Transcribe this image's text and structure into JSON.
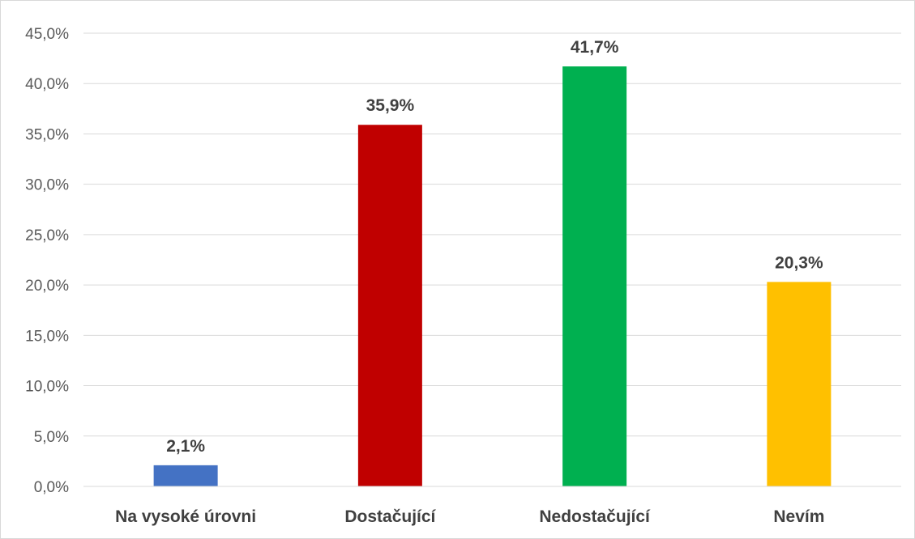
{
  "chart_data": {
    "type": "bar",
    "title": "",
    "xlabel": "",
    "ylabel": "",
    "categories": [
      "Na vysoké úrovni",
      "Dostačující",
      "Nedostačující",
      "Nevím"
    ],
    "values": [
      2.1,
      35.9,
      41.7,
      20.3
    ],
    "data_labels": [
      "2,1%",
      "35,9%",
      "41,7%",
      "20,3%"
    ],
    "colors": [
      "#4472c4",
      "#c00000",
      "#00b050",
      "#ffc000"
    ],
    "ylim": [
      0,
      45
    ],
    "yticks": [
      0,
      5,
      10,
      15,
      20,
      25,
      30,
      35,
      40,
      45
    ],
    "ytick_labels": [
      "0,0%",
      "5,0%",
      "10,0%",
      "15,0%",
      "20,0%",
      "25,0%",
      "30,0%",
      "35,0%",
      "40,0%",
      "45,0%"
    ],
    "grid": true,
    "legend": "none",
    "gridline_color": "#d9d9d9",
    "axis_line_color": "#d9d9d9"
  }
}
